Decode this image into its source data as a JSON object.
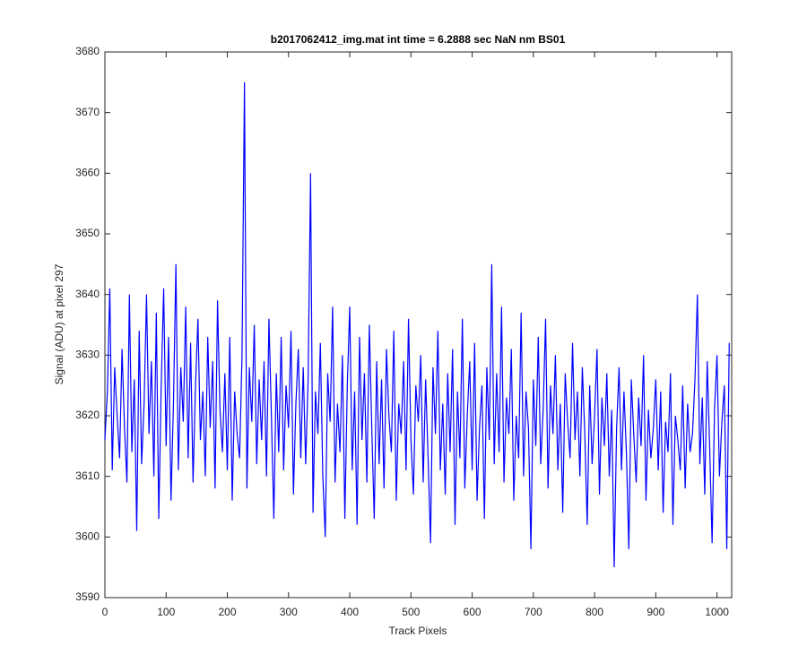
{
  "chart_data": {
    "type": "line",
    "title": "b2017062412_img.mat int time = 6.2888 sec  NaN nm BS01",
    "x_label": "Track Pixels",
    "y_label": "Signal (ADU) at pixel 297",
    "xlim": [
      0,
      1024
    ],
    "ylim": [
      3590,
      3680
    ],
    "xticks": [
      0,
      100,
      200,
      300,
      400,
      500,
      600,
      700,
      800,
      900,
      1000
    ],
    "yticks": [
      3590,
      3600,
      3610,
      3620,
      3630,
      3640,
      3650,
      3660,
      3670,
      3680
    ],
    "grid": false,
    "x": [
      0,
      4,
      8,
      12,
      16,
      20,
      24,
      28,
      32,
      36,
      40,
      44,
      48,
      52,
      56,
      60,
      64,
      68,
      72,
      76,
      80,
      84,
      88,
      92,
      96,
      100,
      104,
      108,
      112,
      116,
      120,
      124,
      128,
      132,
      136,
      140,
      144,
      148,
      152,
      156,
      160,
      164,
      168,
      172,
      176,
      180,
      184,
      188,
      192,
      196,
      200,
      204,
      208,
      212,
      216,
      220,
      224,
      228,
      232,
      236,
      240,
      244,
      248,
      252,
      256,
      260,
      264,
      268,
      272,
      276,
      280,
      284,
      288,
      292,
      296,
      300,
      304,
      308,
      312,
      316,
      320,
      324,
      328,
      332,
      336,
      340,
      344,
      348,
      352,
      356,
      360,
      364,
      368,
      372,
      376,
      380,
      384,
      388,
      392,
      396,
      400,
      404,
      408,
      412,
      416,
      420,
      424,
      428,
      432,
      436,
      440,
      444,
      448,
      452,
      456,
      460,
      464,
      468,
      472,
      476,
      480,
      484,
      488,
      492,
      496,
      500,
      504,
      508,
      512,
      516,
      520,
      524,
      528,
      532,
      536,
      540,
      544,
      548,
      552,
      556,
      560,
      564,
      568,
      572,
      576,
      580,
      584,
      588,
      592,
      596,
      600,
      604,
      608,
      612,
      616,
      620,
      624,
      628,
      632,
      636,
      640,
      644,
      648,
      652,
      656,
      660,
      664,
      668,
      672,
      676,
      680,
      684,
      688,
      692,
      696,
      700,
      704,
      708,
      712,
      716,
      720,
      724,
      728,
      732,
      736,
      740,
      744,
      748,
      752,
      756,
      760,
      764,
      768,
      772,
      776,
      780,
      784,
      788,
      792,
      796,
      800,
      804,
      808,
      812,
      816,
      820,
      824,
      828,
      832,
      836,
      840,
      844,
      848,
      852,
      856,
      860,
      864,
      868,
      872,
      876,
      880,
      884,
      888,
      892,
      896,
      900,
      904,
      908,
      912,
      916,
      920,
      924,
      928,
      932,
      936,
      940,
      944,
      948,
      952,
      956,
      960,
      964,
      968,
      972,
      976,
      980,
      984,
      988,
      992,
      996,
      1000,
      1004,
      1008,
      1012,
      1016,
      1020
    ],
    "series": [
      {
        "color": "#0000ff",
        "values": [
          3616,
          3624,
          3641,
          3611,
          3628,
          3620,
          3613,
          3631,
          3618,
          3609,
          3640,
          3614,
          3626,
          3601,
          3634,
          3612,
          3622,
          3640,
          3617,
          3629,
          3610,
          3637,
          3603,
          3625,
          3641,
          3615,
          3633,
          3606,
          3622,
          3645,
          3611,
          3628,
          3619,
          3638,
          3613,
          3632,
          3609,
          3625,
          3636,
          3616,
          3624,
          3610,
          3633,
          3618,
          3629,
          3608,
          3639,
          3621,
          3614,
          3627,
          3611,
          3633,
          3606,
          3624,
          3617,
          3613,
          3630,
          3675,
          3608,
          3628,
          3619,
          3635,
          3612,
          3626,
          3616,
          3629,
          3610,
          3636,
          3620,
          3603,
          3627,
          3614,
          3633,
          3611,
          3625,
          3618,
          3634,
          3607,
          3622,
          3631,
          3613,
          3628,
          3612,
          3626,
          3660,
          3604,
          3624,
          3617,
          3632,
          3610,
          3600,
          3627,
          3619,
          3638,
          3609,
          3622,
          3614,
          3630,
          3603,
          3625,
          3638,
          3611,
          3624,
          3602,
          3633,
          3616,
          3627,
          3609,
          3635,
          3618,
          3603,
          3629,
          3612,
          3626,
          3608,
          3631,
          3620,
          3614,
          3634,
          3606,
          3622,
          3617,
          3629,
          3611,
          3636,
          3616,
          3607,
          3625,
          3619,
          3630,
          3609,
          3626,
          3613,
          3599,
          3628,
          3617,
          3634,
          3611,
          3622,
          3607,
          3627,
          3614,
          3631,
          3602,
          3624,
          3613,
          3636,
          3608,
          3620,
          3629,
          3611,
          3632,
          3606,
          3618,
          3625,
          3603,
          3628,
          3616,
          3645,
          3612,
          3627,
          3614,
          3638,
          3609,
          3623,
          3617,
          3631,
          3606,
          3620,
          3613,
          3637,
          3610,
          3624,
          3618,
          3598,
          3626,
          3615,
          3633,
          3612,
          3621,
          3636,
          3608,
          3625,
          3617,
          3630,
          3611,
          3622,
          3604,
          3627,
          3619,
          3613,
          3632,
          3616,
          3624,
          3610,
          3628,
          3617,
          3602,
          3625,
          3612,
          3620,
          3631,
          3607,
          3623,
          3615,
          3627,
          3610,
          3621,
          3595,
          3618,
          3628,
          3611,
          3624,
          3614,
          3598,
          3626,
          3617,
          3609,
          3623,
          3615,
          3630,
          3606,
          3621,
          3613,
          3618,
          3626,
          3611,
          3624,
          3604,
          3619,
          3614,
          3627,
          3602,
          3620,
          3616,
          3611,
          3625,
          3608,
          3622,
          3614,
          3617,
          3626,
          3640,
          3612,
          3623,
          3607,
          3629,
          3615,
          3599,
          3621,
          3630,
          3610,
          3619,
          3625,
          3598,
          3632
        ]
      }
    ]
  }
}
